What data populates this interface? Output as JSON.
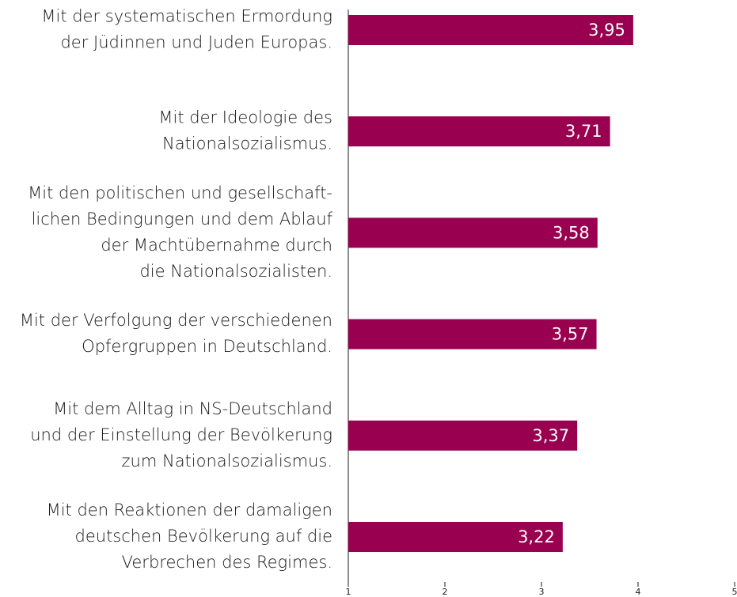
{
  "chart_data": {
    "type": "bar",
    "orientation": "horizontal",
    "categories": [
      [
        "Mit der systematischen Ermordung",
        "der Jüdinnen und Juden Europas."
      ],
      [
        "Mit der Ideologie des",
        "Nationalsozialismus."
      ],
      [
        "Mit den politischen und gesellschaft-",
        "lichen Bedingungen und dem Ablauf",
        "der Machtübernahme durch",
        "die Nationalsozialisten."
      ],
      [
        "Mit der Verfolgung der verschiedenen",
        "Opfergruppen in Deutschland."
      ],
      [
        "Mit dem Alltag in NS-Deutschland",
        "und der Einstellung der Bevölkerung",
        "zum Nationalsozialismus."
      ],
      [
        "Mit den Reaktionen der damaligen",
        "deutschen Bevölkerung auf die",
        "Verbrechen des Regimes."
      ]
    ],
    "values": [
      3.95,
      3.71,
      3.58,
      3.57,
      3.37,
      3.22
    ],
    "value_labels": [
      "3,95",
      "3,71",
      "3,58",
      "3,57",
      "3,37",
      "3,22"
    ],
    "color": "#990050",
    "xlim": [
      1,
      5
    ],
    "xticks": [
      1,
      2,
      3,
      4,
      5
    ]
  }
}
